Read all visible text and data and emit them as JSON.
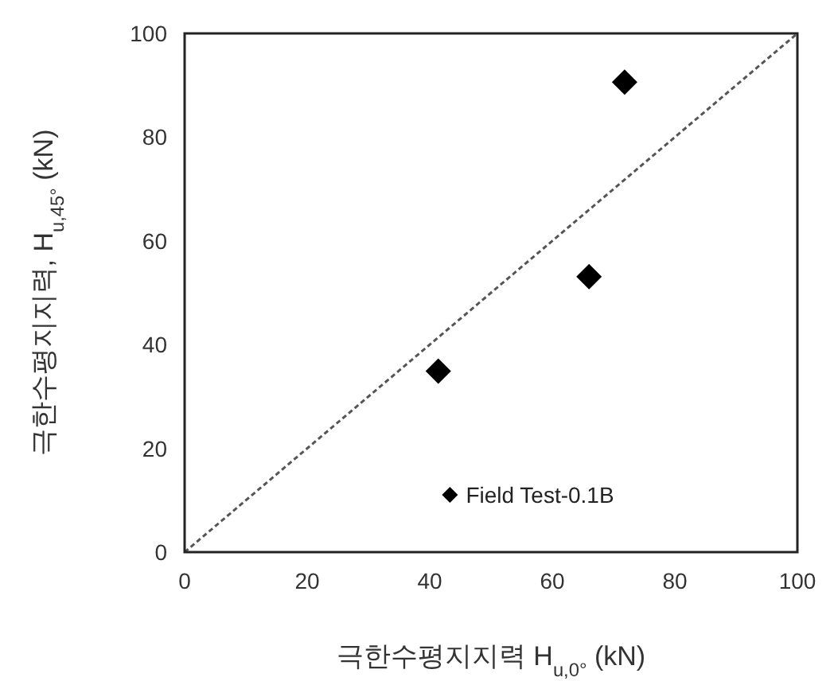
{
  "chart_data": {
    "type": "scatter",
    "xlabel": "극한수평지지력 H$_{u,0°}$ (kN)",
    "ylabel": "극한수평지지력, H$_{u,45°}$ (kN)",
    "xlim": [
      0,
      100
    ],
    "ylim": [
      0,
      100
    ],
    "xticks": [
      0,
      20,
      40,
      60,
      80,
      100
    ],
    "yticks": [
      0,
      20,
      40,
      60,
      80,
      100
    ],
    "grid": false,
    "legend": "bottom right",
    "series": [
      {
        "name": "Field Test-0.1B",
        "marker": "diamond",
        "color": "#000000",
        "x": [
          41.4,
          66.0,
          71.8
        ],
        "values": [
          34.9,
          53.1,
          90.6
        ]
      },
      {
        "type": "line",
        "line_style": "dotted",
        "color": "#555555",
        "x": [
          0,
          100
        ],
        "values": [
          0,
          100
        ]
      }
    ]
  }
}
